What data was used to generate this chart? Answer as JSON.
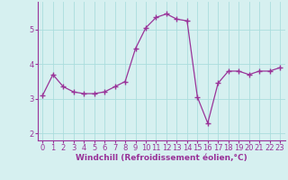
{
  "x": [
    0,
    1,
    2,
    3,
    4,
    5,
    6,
    7,
    8,
    9,
    10,
    11,
    12,
    13,
    14,
    15,
    16,
    17,
    18,
    19,
    20,
    21,
    22,
    23
  ],
  "y": [
    3.1,
    3.7,
    3.35,
    3.2,
    3.15,
    3.15,
    3.2,
    3.35,
    3.5,
    4.45,
    5.05,
    5.35,
    5.45,
    5.3,
    5.25,
    3.05,
    2.3,
    3.45,
    3.8,
    3.8,
    3.7,
    3.8,
    3.8,
    3.9
  ],
  "line_color": "#993399",
  "marker": "+",
  "markersize": 4,
  "linewidth": 0.9,
  "background_color": "#d6f0f0",
  "grid_color": "#aadddd",
  "xlabel": "Windchill (Refroidissement éolien,°C)",
  "xlabel_fontsize": 6.5,
  "tick_fontsize": 6.0,
  "ylim": [
    1.8,
    5.8
  ],
  "xlim": [
    -0.5,
    23.5
  ],
  "xtick_labels": [
    "0",
    "1",
    "2",
    "3",
    "4",
    "5",
    "6",
    "7",
    "8",
    "9",
    "10",
    "11",
    "12",
    "13",
    "14",
    "15",
    "16",
    "17",
    "18",
    "19",
    "20",
    "21",
    "22",
    "23"
  ],
  "ytick_labels": [
    "2",
    "3",
    "4",
    "5"
  ],
  "ytick_values": [
    2,
    3,
    4,
    5
  ]
}
